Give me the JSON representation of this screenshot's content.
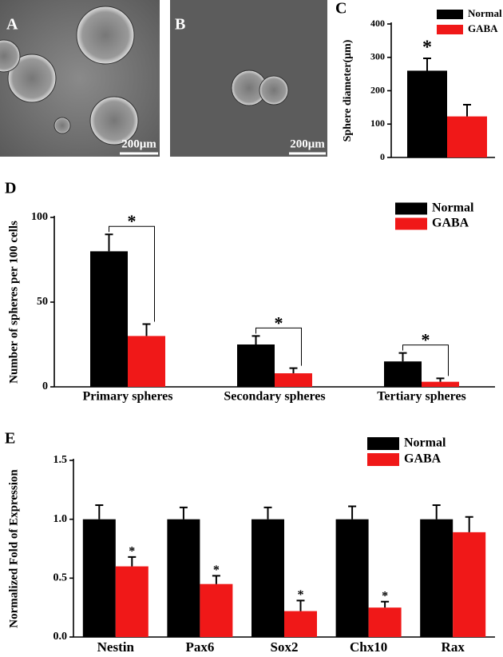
{
  "panels": [
    {
      "label": "A",
      "scale_bar": "200μm"
    },
    {
      "label": "B",
      "scale_bar": "200μm"
    }
  ],
  "chart_data": [
    {
      "type": "bar",
      "panel": "C",
      "y_label": "Sphere diameter(μm)",
      "categories": [
        null
      ],
      "series": [
        {
          "name": "Normal",
          "color": "#000000",
          "values": [
            260
          ],
          "errors": [
            37
          ]
        },
        {
          "name": "GABA",
          "color": "#f01818",
          "values": [
            123
          ],
          "errors": [
            35
          ]
        }
      ],
      "significance": [
        "*"
      ],
      "ylim": [
        0,
        400
      ],
      "yticks": [
        0,
        100,
        200,
        300,
        400
      ]
    },
    {
      "type": "bar",
      "panel": "D",
      "y_label": "Number of spheres per 100 cells",
      "categories": [
        "Primary spheres",
        "Secondary spheres",
        "Tertiary spheres"
      ],
      "series": [
        {
          "name": "Normal",
          "color": "#000000",
          "values": [
            80,
            25,
            15
          ],
          "errors": [
            10,
            5,
            5
          ]
        },
        {
          "name": "GABA",
          "color": "#f01818",
          "values": [
            30,
            8,
            3
          ],
          "errors": [
            7,
            3,
            2
          ]
        }
      ],
      "significance": [
        "*",
        "*",
        "*"
      ],
      "ylim": [
        0,
        100
      ],
      "yticks": [
        0,
        50,
        100
      ]
    },
    {
      "type": "bar",
      "panel": "E",
      "y_label": "Normalized Fold of Expression",
      "categories": [
        "Nestin",
        "Pax6",
        "Sox2",
        "Chx10",
        "Rax"
      ],
      "series": [
        {
          "name": "Normal",
          "color": "#000000",
          "values": [
            1,
            1,
            1,
            1,
            1
          ],
          "errors": [
            0.12,
            0.1,
            0.1,
            0.11,
            0.12
          ]
        },
        {
          "name": "GABA",
          "color": "#f01818",
          "values": [
            0.6,
            0.45,
            0.22,
            0.25,
            0.89
          ],
          "errors": [
            0.08,
            0.07,
            0.09,
            0.05,
            0.13
          ]
        }
      ],
      "significance": [
        "*",
        "*",
        "*",
        "*",
        null
      ],
      "ylim": [
        0,
        1.5
      ],
      "yticks": [
        {
          "value": 0,
          "label": "0.0"
        },
        0.5,
        {
          "value": 1,
          "label": "1.0"
        },
        {
          "value": 1.5,
          "label": "1.5"
        }
      ]
    }
  ]
}
